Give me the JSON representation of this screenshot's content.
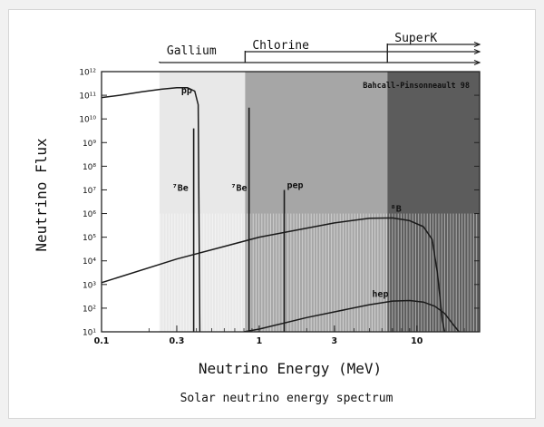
{
  "chart_data": {
    "type": "line",
    "title": "Solar neutrino energy spectrum",
    "xlabel": "Neutrino Energy (MeV)",
    "ylabel": "Neutrino Flux",
    "x_scale": "log",
    "y_scale": "log",
    "xlim": [
      0.1,
      25
    ],
    "ylim": [
      10,
      1000000000000.0
    ],
    "annotation": "Bahcall-Pinsonneault 98",
    "x_ticks": [
      {
        "v": 0.1,
        "label": "0.1"
      },
      {
        "v": 0.3,
        "label": "0.3"
      },
      {
        "v": 1,
        "label": "1"
      },
      {
        "v": 3,
        "label": "3"
      },
      {
        "v": 10,
        "label": "10"
      }
    ],
    "y_ticks": [
      {
        "v": 10,
        "label": "10¹"
      },
      {
        "v": 100,
        "label": "10²"
      },
      {
        "v": 1000,
        "label": "10³"
      },
      {
        "v": 10000,
        "label": "10⁴"
      },
      {
        "v": 100000,
        "label": "10⁵"
      },
      {
        "v": 1000000,
        "label": "10⁶"
      },
      {
        "v": 10000000,
        "label": "10⁷"
      },
      {
        "v": 100000000,
        "label": "10⁸"
      },
      {
        "v": 1000000000,
        "label": "10⁹"
      },
      {
        "v": 10000000000,
        "label": "10¹⁰"
      },
      {
        "v": 100000000000,
        "label": "10¹¹"
      },
      {
        "v": 1000000000000,
        "label": "10¹²"
      }
    ],
    "detectors": [
      {
        "name": "Gallium",
        "threshold": 0.233
      },
      {
        "name": "Chlorine",
        "threshold": 0.814
      },
      {
        "name": "SuperK",
        "threshold": 6.5
      }
    ],
    "series": [
      {
        "name": "pp",
        "x": [
          0.1,
          0.13,
          0.18,
          0.24,
          0.3,
          0.35,
          0.39,
          0.41,
          0.42
        ],
        "y": [
          80000000000,
          100000000000,
          140000000000,
          180000000000,
          210000000000,
          210000000000,
          150000000000,
          40000000000,
          10
        ]
      },
      {
        "name": "⁸B",
        "x": [
          0.1,
          0.3,
          1,
          3,
          5,
          7,
          9,
          11,
          12.5,
          13.5,
          14.5,
          15
        ],
        "y": [
          1200,
          12000,
          100000,
          400000,
          630000,
          650000,
          500000,
          280000,
          80000,
          3000,
          30,
          10
        ]
      },
      {
        "name": "hep",
        "x": [
          0.8,
          1,
          2,
          3,
          5,
          7,
          9,
          11,
          13,
          15,
          17,
          18.5
        ],
        "y": [
          10,
          13,
          40,
          70,
          140,
          200,
          210,
          180,
          120,
          60,
          20,
          10
        ]
      }
    ],
    "lines": [
      {
        "name": "⁷Be",
        "energy": 0.384,
        "flux": 4000000000
      },
      {
        "name": "⁷Be",
        "energy": 0.862,
        "flux": 30000000000
      },
      {
        "name": "pep",
        "energy": 1.442,
        "flux": 10000000
      }
    ],
    "series_labels": [
      {
        "text": "pp",
        "x": 0.32,
        "y": 120000000000
      },
      {
        "text": "⁷Be",
        "x": 0.28,
        "y": 9000000
      },
      {
        "text": "⁷Be",
        "x": 0.66,
        "y": 9000000
      },
      {
        "text": "pep",
        "x": 1.5,
        "y": 12000000
      },
      {
        "text": "⁸B",
        "x": 6.8,
        "y": 1200000
      },
      {
        "text": "hep",
        "x": 5.2,
        "y": 300
      }
    ],
    "colors": {
      "gallium_region": "#e8e8e8",
      "chlorine_region": "#a6a6a6",
      "superk_region": "#5c5c5c",
      "curves": "#1a1a1a"
    }
  }
}
